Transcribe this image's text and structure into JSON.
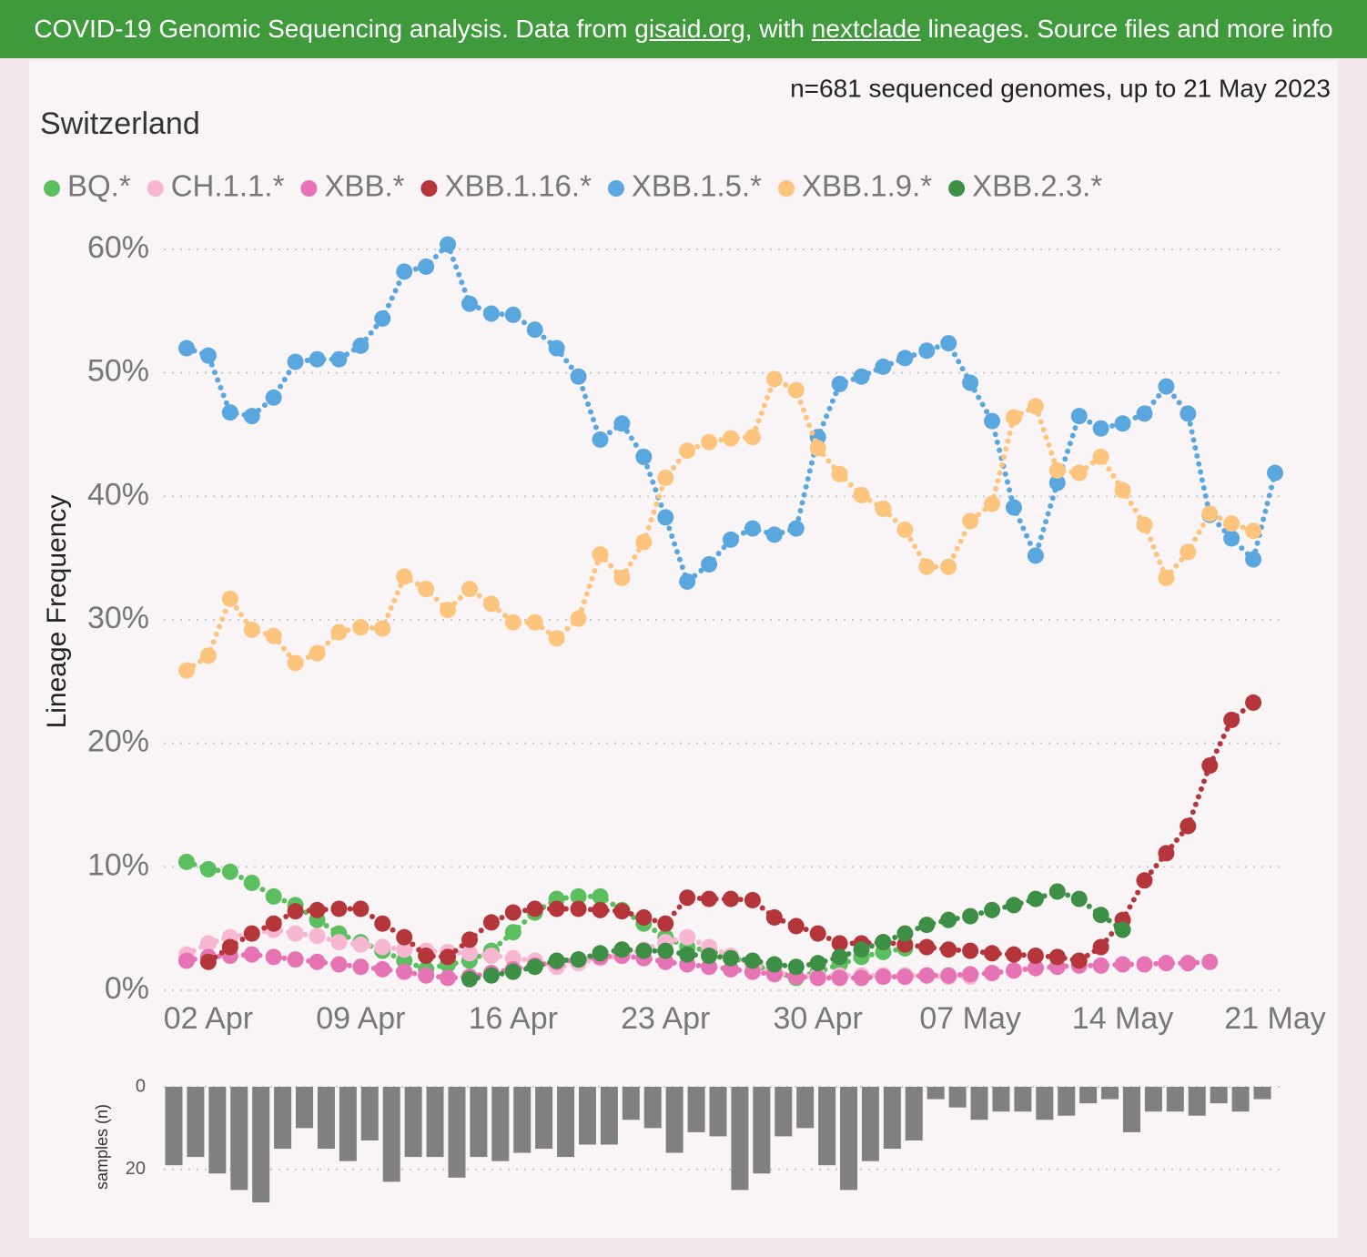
{
  "header": {
    "parts": [
      "COVID-19 Genomic Sequencing analysis. Data from ",
      "gisaid.org",
      ", with ",
      "nextclade",
      " lineages. Source files and more info"
    ]
  },
  "chart_data": [
    {
      "type": "line",
      "title": "Switzerland",
      "subtitle": "n=681 sequenced genomes, up to 21 May 2023",
      "y_label": "Lineage Frequency",
      "x": [
        "01 Apr",
        "02 Apr",
        "03 Apr",
        "04 Apr",
        "05 Apr",
        "06 Apr",
        "07 Apr",
        "08 Apr",
        "09 Apr",
        "10 Apr",
        "11 Apr",
        "12 Apr",
        "13 Apr",
        "14 Apr",
        "15 Apr",
        "16 Apr",
        "17 Apr",
        "18 Apr",
        "19 Apr",
        "20 Apr",
        "21 Apr",
        "22 Apr",
        "23 Apr",
        "24 Apr",
        "25 Apr",
        "26 Apr",
        "27 Apr",
        "28 Apr",
        "29 Apr",
        "30 Apr",
        "01 May",
        "02 May",
        "03 May",
        "04 May",
        "05 May",
        "06 May",
        "07 May",
        "08 May",
        "09 May",
        "10 May",
        "11 May",
        "12 May",
        "13 May",
        "14 May",
        "15 May",
        "16 May",
        "17 May",
        "18 May",
        "19 May",
        "20 May",
        "21 May"
      ],
      "xticks": [
        "02 Apr",
        "09 Apr",
        "16 Apr",
        "23 Apr",
        "30 Apr",
        "07 May",
        "14 May",
        "21 May"
      ],
      "ylim": [
        0,
        60
      ],
      "yticks": [
        {
          "value": 0,
          "label": "0%"
        },
        {
          "value": 10,
          "label": "10%"
        },
        {
          "value": 20,
          "label": "20%"
        },
        {
          "value": 30,
          "label": "30%"
        },
        {
          "value": 40,
          "label": "40%"
        },
        {
          "value": 50,
          "label": "50%"
        },
        {
          "value": 60,
          "label": "60%"
        }
      ],
      "grid": true,
      "series": [
        {
          "name": "BQ.*",
          "color": "#5cbf5f",
          "values": [
            10.4,
            9.8,
            9.6,
            8.7,
            7.6,
            6.9,
            5.7,
            4.6,
            3.9,
            3.2,
            2.4,
            1.7,
            2.1,
            2.4,
            3.2,
            4.7,
            6.3,
            7.4,
            7.6,
            7.6,
            6.5,
            5.4,
            4.3,
            3.5,
            3.2,
            2.7,
            2.1,
            1.5,
            1.0,
            1.5,
            2.1,
            2.7,
            3.1,
            3.4,
            null,
            null,
            null,
            null,
            null,
            null,
            null,
            null,
            null,
            null,
            null,
            null,
            null,
            null,
            null,
            null,
            null
          ]
        },
        {
          "name": "CH.1.1.*",
          "color": "#f7b6d2",
          "values": [
            2.9,
            3.8,
            4.3,
            4.6,
            4.9,
            4.6,
            4.4,
            3.9,
            3.7,
            3.5,
            3.3,
            3.2,
            3.1,
            3.0,
            2.8,
            2.6,
            2.4,
            1.9,
            2.2,
            2.6,
            2.8,
            3.3,
            3.9,
            4.3,
            3.5,
            2.8,
            2.1,
            1.5,
            1.1,
            1.2,
            1.2,
            1.2,
            1.2,
            1.2,
            1.2,
            1.1,
            1.1,
            null,
            null,
            null,
            null,
            null,
            null,
            null,
            null,
            null,
            null,
            null,
            null,
            null,
            null
          ]
        },
        {
          "name": "XBB.*",
          "color": "#e674b4",
          "values": [
            2.4,
            2.7,
            2.8,
            2.9,
            2.7,
            2.5,
            2.3,
            2.1,
            1.9,
            1.7,
            1.5,
            1.2,
            1.0,
            1.1,
            1.4,
            1.7,
            2.0,
            2.3,
            2.5,
            2.7,
            2.8,
            2.6,
            2.3,
            2.1,
            1.9,
            1.7,
            1.5,
            1.3,
            1.1,
            1.0,
            1.0,
            1.0,
            1.1,
            1.1,
            1.2,
            1.2,
            1.3,
            1.4,
            1.6,
            1.8,
            1.9,
            2.0,
            2.0,
            2.1,
            2.1,
            2.2,
            2.2,
            2.3,
            null,
            null,
            null
          ]
        },
        {
          "name": "XBB.1.16.*",
          "color": "#b5363a",
          "values": [
            null,
            2.3,
            3.5,
            4.6,
            5.4,
            6.4,
            6.5,
            6.6,
            6.6,
            5.4,
            4.3,
            2.8,
            2.7,
            4.1,
            5.5,
            6.3,
            6.6,
            6.6,
            6.6,
            6.5,
            6.4,
            5.9,
            5.4,
            7.5,
            7.4,
            7.4,
            7.3,
            5.9,
            5.2,
            4.6,
            3.8,
            3.8,
            3.9,
            3.7,
            3.5,
            3.3,
            3.2,
            3.0,
            2.9,
            2.8,
            2.7,
            2.4,
            3.5,
            5.7,
            8.9,
            11.1,
            13.3,
            18.2,
            21.9,
            23.3,
            null
          ]
        },
        {
          "name": "XBB.1.5.*",
          "color": "#5aa6df",
          "values": [
            52.0,
            51.4,
            46.8,
            46.5,
            48.0,
            50.9,
            51.1,
            51.1,
            52.2,
            54.4,
            58.2,
            58.6,
            60.4,
            55.6,
            54.8,
            54.7,
            53.5,
            52.0,
            49.7,
            44.6,
            45.9,
            43.2,
            38.3,
            33.1,
            34.5,
            36.5,
            37.4,
            36.9,
            37.4,
            44.8,
            49.1,
            49.7,
            50.5,
            51.2,
            51.8,
            52.4,
            49.2,
            46.1,
            39.1,
            35.2,
            41.1,
            46.5,
            45.5,
            45.9,
            46.7,
            48.9,
            46.7,
            38.5,
            36.6,
            34.9,
            41.9
          ]
        },
        {
          "name": "XBB.1.9.*",
          "color": "#fdc47e",
          "values": [
            25.9,
            27.1,
            31.7,
            29.2,
            28.7,
            26.5,
            27.3,
            29.0,
            29.4,
            29.3,
            33.5,
            32.5,
            30.8,
            32.5,
            31.3,
            29.8,
            29.8,
            28.5,
            30.1,
            35.3,
            33.4,
            36.3,
            41.5,
            43.7,
            44.4,
            44.7,
            44.8,
            49.5,
            48.6,
            43.9,
            41.8,
            40.1,
            39.0,
            37.3,
            34.3,
            34.3,
            38.0,
            39.4,
            46.4,
            47.3,
            42.1,
            41.9,
            43.2,
            40.5,
            37.7,
            33.4,
            35.5,
            38.6,
            37.8,
            37.2,
            null
          ]
        },
        {
          "name": "XBB.2.3.*",
          "color": "#3e8f46",
          "values": [
            null,
            null,
            null,
            null,
            null,
            null,
            null,
            null,
            null,
            null,
            null,
            null,
            null,
            0.9,
            1.2,
            1.5,
            1.9,
            2.4,
            2.5,
            3.0,
            3.3,
            3.2,
            3.2,
            2.9,
            2.8,
            2.6,
            2.4,
            2.1,
            1.9,
            2.2,
            2.7,
            3.3,
            3.9,
            4.6,
            5.3,
            5.7,
            6.0,
            6.5,
            6.9,
            7.4,
            8.0,
            7.4,
            6.1,
            4.9,
            null,
            null,
            null,
            null,
            null,
            null,
            null
          ]
        }
      ]
    },
    {
      "type": "bar",
      "y_label": "samples (n)",
      "color": "#808080",
      "ylim": [
        0,
        28
      ],
      "yticks": [
        0,
        20
      ],
      "inverted": true,
      "grid": true,
      "values": [
        19,
        17,
        21,
        25,
        28,
        15,
        10,
        15,
        18,
        13,
        23,
        17,
        17,
        22,
        17,
        18,
        16,
        15,
        17,
        14,
        14,
        8,
        10,
        16,
        11,
        12,
        25,
        21,
        12,
        10,
        19,
        25,
        18,
        15,
        13,
        3,
        5,
        8,
        6,
        6,
        8,
        7,
        4,
        3,
        11,
        6,
        6,
        7,
        4,
        6,
        3
      ]
    }
  ]
}
